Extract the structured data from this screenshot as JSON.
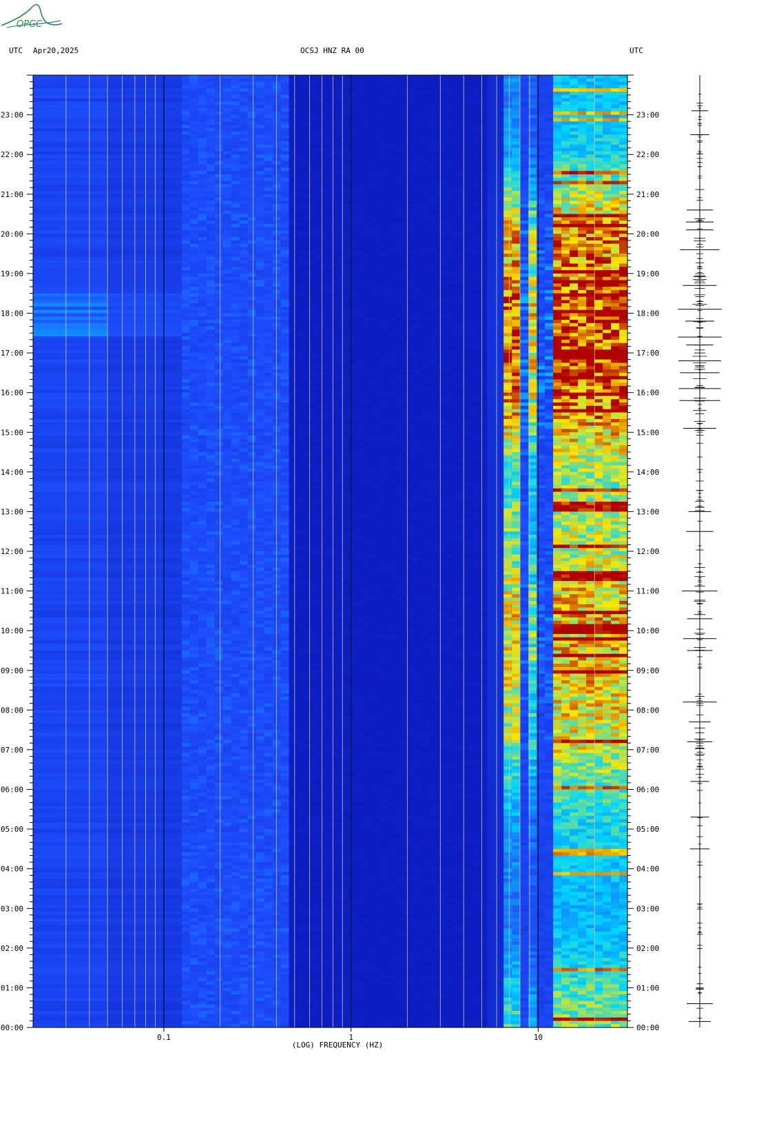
{
  "header": {
    "left_tz": "UTC",
    "date": "Apr20,2025",
    "station": "OCSJ HNZ RA 00",
    "right_tz": "UTC"
  },
  "logo": {
    "text": "OPGC",
    "color": "#2a8c3c"
  },
  "colors": {
    "background": "#ffffff",
    "low": "#0a16b8",
    "mid": "#00d6ff",
    "high": "#ffe600",
    "peak": "#b00000",
    "grid_minor": "#c8c8a0",
    "grid_major": "#000000"
  },
  "chart_data": {
    "type": "heatmap",
    "title": "OCSJ HNZ RA 00",
    "xlabel": "(LOG) FREQUENCY (HZ)",
    "ylabel": "",
    "x_scale": "log",
    "xlim_hz": [
      0.02,
      30
    ],
    "x_tick_labels": [
      {
        "value": 0.1,
        "label": "0.1"
      },
      {
        "value": 1,
        "label": "1"
      },
      {
        "value": 10,
        "label": "10"
      }
    ],
    "x_minor_gridlines_hz": [
      0.03,
      0.04,
      0.05,
      0.06,
      0.07,
      0.08,
      0.09,
      0.2,
      0.3,
      0.4,
      0.5,
      0.6,
      0.7,
      0.8,
      0.9,
      2,
      3,
      4,
      5,
      6,
      7,
      8,
      9,
      20
    ],
    "x_major_gridlines_hz": [
      0.1,
      1,
      10
    ],
    "ylim_hours_utc": [
      0,
      24
    ],
    "y_tick_labels": [
      "00:00",
      "01:00",
      "02:00",
      "03:00",
      "04:00",
      "05:00",
      "06:00",
      "07:00",
      "08:00",
      "09:00",
      "10:00",
      "11:00",
      "12:00",
      "13:00",
      "14:00",
      "15:00",
      "16:00",
      "17:00",
      "18:00",
      "19:00",
      "20:00",
      "21:00",
      "22:00",
      "23:00"
    ],
    "activity_by_hour_utc": [
      0.55,
      0.45,
      0.3,
      0.25,
      0.3,
      0.35,
      0.45,
      0.65,
      0.7,
      0.75,
      0.8,
      0.75,
      0.6,
      0.6,
      0.55,
      0.75,
      0.95,
      1.0,
      1.0,
      0.9,
      0.85,
      0.6,
      0.35,
      0.3
    ],
    "seismic_trace_events_hours_utc": [
      0.15,
      0.6,
      4.5,
      5.3,
      6.2,
      7.2,
      7.7,
      8.2,
      9.5,
      9.8,
      10.3,
      11.0,
      12.5,
      13.0,
      15.1,
      15.8,
      16.1,
      16.5,
      16.8,
      17.2,
      17.4,
      17.8,
      18.1,
      18.7,
      19.6,
      20.1,
      20.3,
      20.6,
      22.5,
      23.1
    ]
  }
}
